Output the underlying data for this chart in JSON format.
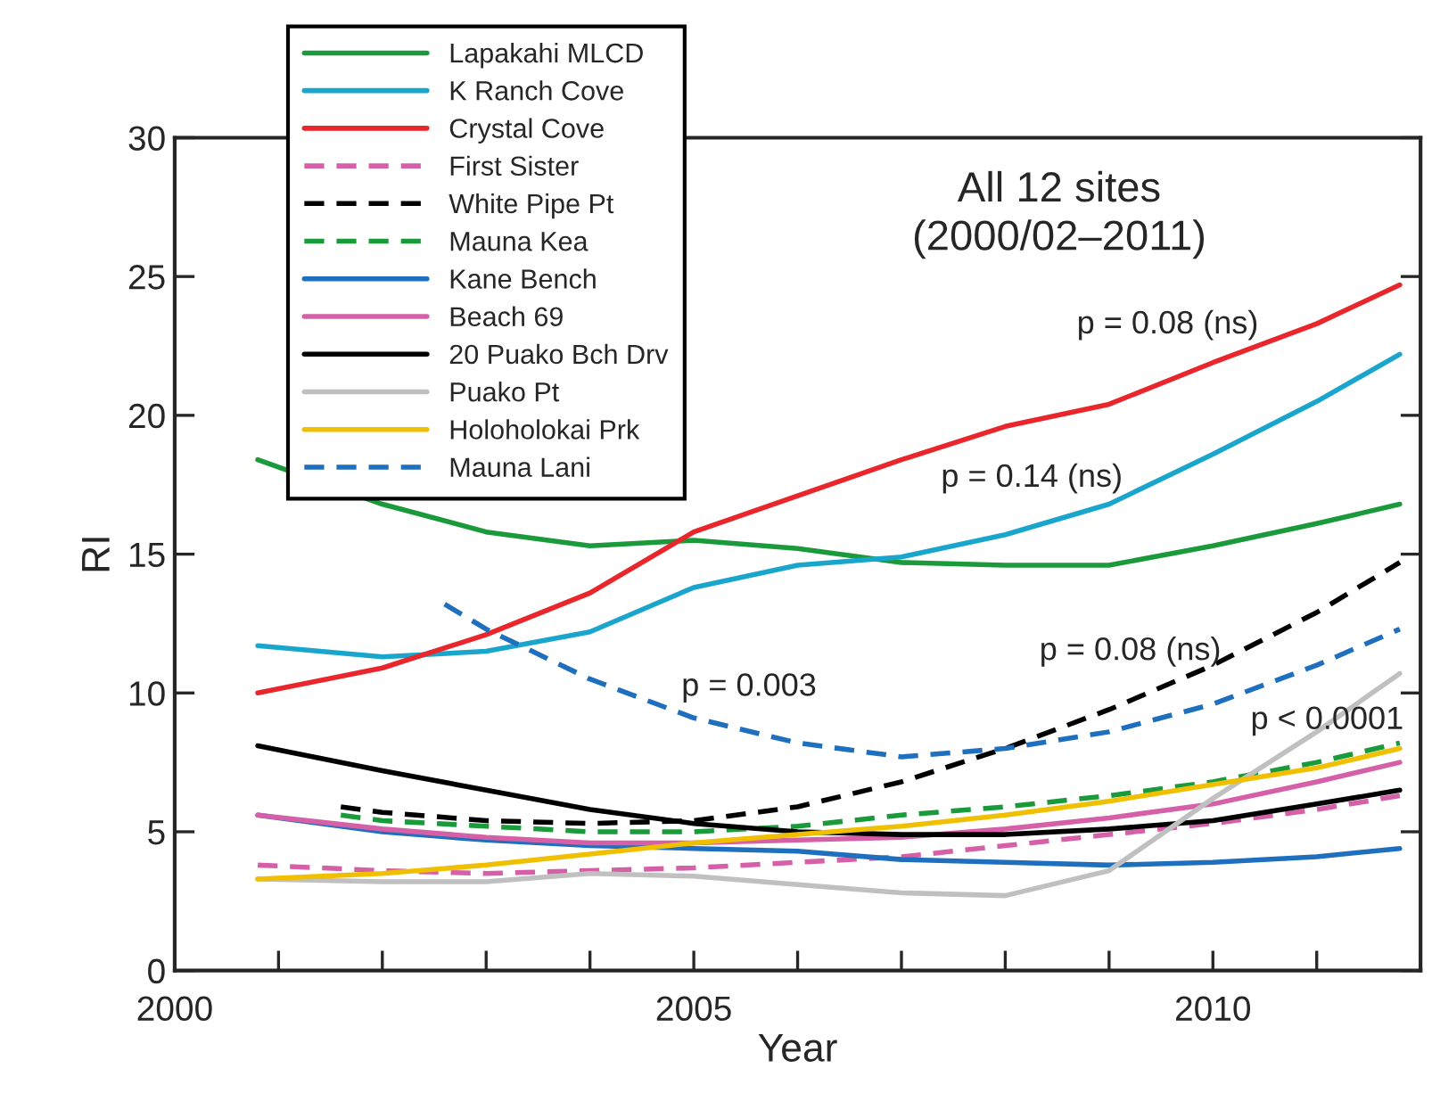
{
  "chart_data": {
    "type": "line",
    "title": "All 12 sites\n(2000/02–2011)",
    "xlabel": "Year",
    "ylabel": "RI",
    "xlim": [
      2000,
      2012
    ],
    "ylim": [
      0,
      30
    ],
    "xticks": [
      2000,
      {
        "value": 2001,
        "label": null
      },
      {
        "value": 2002,
        "label": null
      },
      {
        "value": 2003,
        "label": null
      },
      {
        "value": 2004,
        "label": null
      },
      2005,
      {
        "value": 2006,
        "label": null
      },
      {
        "value": 2007,
        "label": null
      },
      {
        "value": 2008,
        "label": null
      },
      {
        "value": 2009,
        "label": null
      },
      2010,
      {
        "value": 2011,
        "label": null
      },
      {
        "value": 2012,
        "label": null
      }
    ],
    "yticks": [
      0,
      5,
      10,
      15,
      20,
      25,
      30
    ],
    "grid": false,
    "legend": "top left",
    "marker": "none",
    "x": [
      2000.8,
      2002,
      2003,
      2004,
      2005,
      2006,
      2007,
      2008,
      2009,
      2010,
      2011,
      2011.8
    ],
    "series": [
      {
        "name": "Lapakahi MLCD",
        "color": "#1a9a3a",
        "line_style": "solid",
        "values": [
          18.4,
          16.8,
          15.8,
          15.3,
          15.5,
          15.2,
          14.7,
          14.6,
          14.6,
          15.3,
          16.1,
          16.8
        ]
      },
      {
        "name": "K Ranch Cove",
        "color": "#1aa6cc",
        "line_style": "solid",
        "values": [
          11.7,
          11.3,
          11.5,
          12.2,
          13.8,
          14.6,
          14.9,
          15.7,
          16.8,
          18.6,
          20.5,
          22.2
        ]
      },
      {
        "name": "Crystal Cove",
        "color": "#e8262b",
        "line_style": "solid",
        "values": [
          10.0,
          10.9,
          12.1,
          13.6,
          15.8,
          17.1,
          18.4,
          19.6,
          20.4,
          21.9,
          23.3,
          24.7
        ]
      },
      {
        "name": "First Sister",
        "color": "#d660a8",
        "line_style": "dashed",
        "values": [
          3.8,
          3.6,
          3.5,
          3.6,
          3.7,
          3.9,
          4.1,
          4.5,
          4.9,
          5.3,
          5.8,
          6.3
        ]
      },
      {
        "name": "White Pipe Pt",
        "color": "#000000",
        "line_style": "dashed",
        "x": [
          2001.6,
          2002,
          2003,
          2004,
          2005,
          2006,
          2007,
          2008,
          2009,
          2010,
          2011,
          2011.8
        ],
        "values": [
          5.9,
          5.7,
          5.4,
          5.3,
          5.4,
          5.9,
          6.8,
          8.0,
          9.4,
          11.0,
          12.9,
          14.7
        ]
      },
      {
        "name": "Mauna Kea",
        "color": "#1a9a3a",
        "line_style": "dashed",
        "x": [
          2001.6,
          2002,
          2003,
          2004,
          2005,
          2006,
          2007,
          2008,
          2009,
          2010,
          2011,
          2011.8
        ],
        "values": [
          5.6,
          5.4,
          5.2,
          5.0,
          5.0,
          5.2,
          5.6,
          5.9,
          6.3,
          6.8,
          7.5,
          8.2
        ]
      },
      {
        "name": "Kane Bench",
        "color": "#1f6fbf",
        "line_style": "solid",
        "values": [
          5.6,
          5.0,
          4.7,
          4.5,
          4.4,
          4.3,
          4.0,
          3.9,
          3.8,
          3.9,
          4.1,
          4.4
        ]
      },
      {
        "name": "Beach 69",
        "color": "#d660a8",
        "line_style": "solid",
        "values": [
          5.6,
          5.1,
          4.8,
          4.6,
          4.6,
          4.7,
          4.8,
          5.1,
          5.5,
          6.0,
          6.8,
          7.5
        ]
      },
      {
        "name": "20 Puako Bch Drv",
        "color": "#000000",
        "line_style": "solid",
        "values": [
          8.1,
          7.2,
          6.5,
          5.8,
          5.3,
          5.0,
          4.9,
          4.9,
          5.1,
          5.4,
          6.0,
          6.5
        ]
      },
      {
        "name": "Puako Pt",
        "color": "#c0c0c0",
        "line_style": "solid",
        "values": [
          3.3,
          3.2,
          3.2,
          3.5,
          3.4,
          3.1,
          2.8,
          2.7,
          3.6,
          6.2,
          8.6,
          10.7
        ]
      },
      {
        "name": "Holoholokai Prk",
        "color": "#f0c000",
        "line_style": "solid",
        "values": [
          3.3,
          3.5,
          3.8,
          4.2,
          4.6,
          4.9,
          5.2,
          5.6,
          6.1,
          6.7,
          7.3,
          8.0
        ]
      },
      {
        "name": "Mauna Lani",
        "color": "#1f6fbf",
        "line_style": "dashed",
        "x": [
          2002.6,
          2003,
          2004,
          2005,
          2006,
          2007,
          2008,
          2009,
          2010,
          2011,
          2011.8
        ],
        "values": [
          13.2,
          12.3,
          10.5,
          9.1,
          8.2,
          7.7,
          8.0,
          8.6,
          9.6,
          11.0,
          12.3
        ]
      }
    ],
    "annotations": [
      "p = 0.08 (ns)",
      "p = 0.14 (ns)",
      "p = 0.08 (ns)",
      "p = 0.003",
      "p < 0.0001"
    ]
  }
}
